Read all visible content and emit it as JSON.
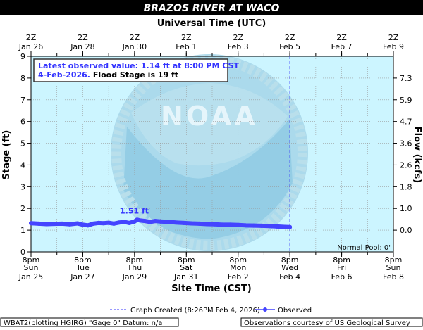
{
  "title": "BRAZOS RIVER AT WACO",
  "top_axis_label": "Universal Time (UTC)",
  "bottom_axis_label": "Site Time (CST)",
  "left_axis_label": "Stage (ft)",
  "right_axis_label": "Flow (kcfs)",
  "info_box": {
    "line1": "Latest observed value: 1.14 ft at 8:00 PM CST",
    "line2_date": "4-Feb-2026.",
    "line2_rest": " Flood Stage is 19 ft"
  },
  "normal_pool": "Normal Pool: 0'",
  "legend": {
    "graph_created": "Graph Created (8:26PM Feb 4, 2026)",
    "observed": "Observed"
  },
  "footer": {
    "left": "WBAT2(plotting HGIRG) \"Gage 0\" Datum: n/a",
    "right": "Observations courtesy of US Geological Survey"
  },
  "colors": {
    "observed": "#4444ff",
    "background": "#ccf5ff",
    "title_bar": "#000000",
    "info_text": "#3333ff"
  },
  "chart_data": {
    "type": "line",
    "xlim_days": [
      0,
      14
    ],
    "ylim": [
      0,
      9
    ],
    "y_ticks": [
      0,
      1,
      2,
      3,
      4,
      5,
      6,
      7,
      8,
      9
    ],
    "right_ticks": [
      "0.0",
      "1.0",
      "1.8",
      "2.6",
      "3.6",
      "4.7",
      "5.9",
      "7.3"
    ],
    "top_ticks": [
      [
        "2Z",
        "Jan 26"
      ],
      [
        "2Z",
        "Jan 28"
      ],
      [
        "2Z",
        "Jan 30"
      ],
      [
        "2Z",
        "Feb  1"
      ],
      [
        "2Z",
        "Feb  3"
      ],
      [
        "2Z",
        "Feb  5"
      ],
      [
        "2Z",
        "Feb  7"
      ],
      [
        "2Z",
        "Feb  9"
      ]
    ],
    "bottom_ticks": [
      [
        "8pm",
        "Sun",
        "Jan 25"
      ],
      [
        "8pm",
        "Tue",
        "Jan 27"
      ],
      [
        "8pm",
        "Thu",
        "Jan 29"
      ],
      [
        "8pm",
        "Sat",
        "Jan 31"
      ],
      [
        "8pm",
        "Mon",
        "Feb 2"
      ],
      [
        "8pm",
        "Wed",
        "Feb 4"
      ],
      [
        "8pm",
        "Fri",
        "Feb 6"
      ],
      [
        "8pm",
        "Sun",
        "Feb 8"
      ]
    ],
    "current_day": 10,
    "annotation": {
      "label": "1.51 ft",
      "x": 4.1,
      "y": 1.51
    },
    "series": [
      {
        "name": "Observed",
        "x": [
          0,
          0.3,
          0.6,
          0.9,
          1.2,
          1.5,
          1.8,
          2.0,
          2.2,
          2.4,
          2.6,
          2.8,
          3.0,
          3.2,
          3.4,
          3.6,
          3.8,
          4.0,
          4.1,
          4.2,
          4.4,
          4.6,
          4.8,
          5.0,
          5.3,
          5.6,
          5.9,
          6.2,
          6.5,
          6.8,
          7.1,
          7.4,
          7.7,
          8.0,
          8.3,
          8.6,
          8.9,
          9.2,
          9.5,
          9.8,
          10.0
        ],
        "y": [
          1.32,
          1.3,
          1.28,
          1.29,
          1.3,
          1.27,
          1.31,
          1.25,
          1.22,
          1.3,
          1.33,
          1.32,
          1.34,
          1.3,
          1.35,
          1.38,
          1.33,
          1.4,
          1.48,
          1.45,
          1.42,
          1.38,
          1.42,
          1.4,
          1.38,
          1.35,
          1.33,
          1.31,
          1.3,
          1.28,
          1.27,
          1.25,
          1.25,
          1.24,
          1.22,
          1.21,
          1.2,
          1.19,
          1.17,
          1.15,
          1.14
        ]
      }
    ]
  }
}
